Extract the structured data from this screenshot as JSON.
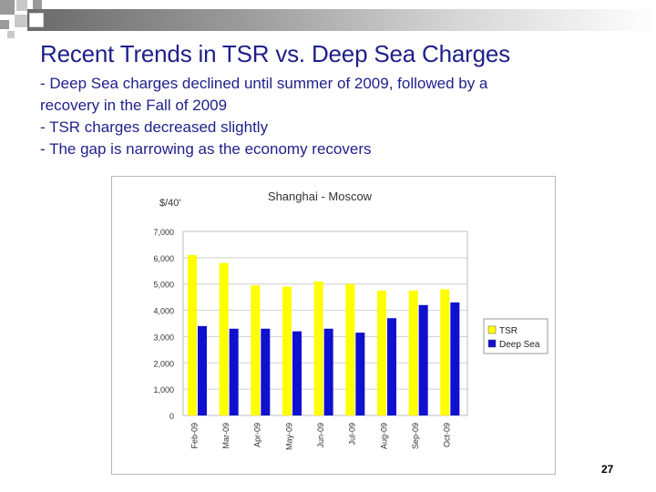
{
  "slide": {
    "title": "Recent Trends in TSR vs. Deep Sea Charges",
    "bullets": [
      "- Deep Sea charges declined until summer of 2009, followed by a",
      "recovery in the Fall of 2009",
      "- TSR charges decreased slightly",
      "- The gap is narrowing as the economy recovers"
    ],
    "page_number": "27"
  },
  "colors": {
    "title_text": "#1f1f8a",
    "tsr_bar": "#ffff00",
    "deep_sea_bar": "#1010d0"
  },
  "chart_data": {
    "type": "bar",
    "title": "Shanghai - Moscow",
    "ylabel": "$/40'",
    "xlabel": "",
    "categories": [
      "Feb-09",
      "Mar-09",
      "Apr-09",
      "May-09",
      "Jun-09",
      "Jul-09",
      "Aug-09",
      "Sep-09",
      "Oct-09"
    ],
    "series": [
      {
        "name": "TSR",
        "color": "#ffff00",
        "values": [
          6100,
          5800,
          4950,
          4900,
          5100,
          5000,
          4750,
          4750,
          4800
        ]
      },
      {
        "name": "Deep Sea",
        "color": "#1010d0",
        "values": [
          3400,
          3300,
          3300,
          3200,
          3300,
          3150,
          3700,
          4200,
          4300
        ]
      }
    ],
    "ylim": [
      0,
      7000
    ],
    "yticks": [
      0,
      1000,
      2000,
      3000,
      4000,
      5000,
      6000,
      7000
    ],
    "ytick_labels": [
      "0",
      "1,000",
      "2,000",
      "3,000",
      "4,000",
      "5,000",
      "6,000",
      "7,000"
    ],
    "grid": true,
    "legend_position": "right"
  }
}
